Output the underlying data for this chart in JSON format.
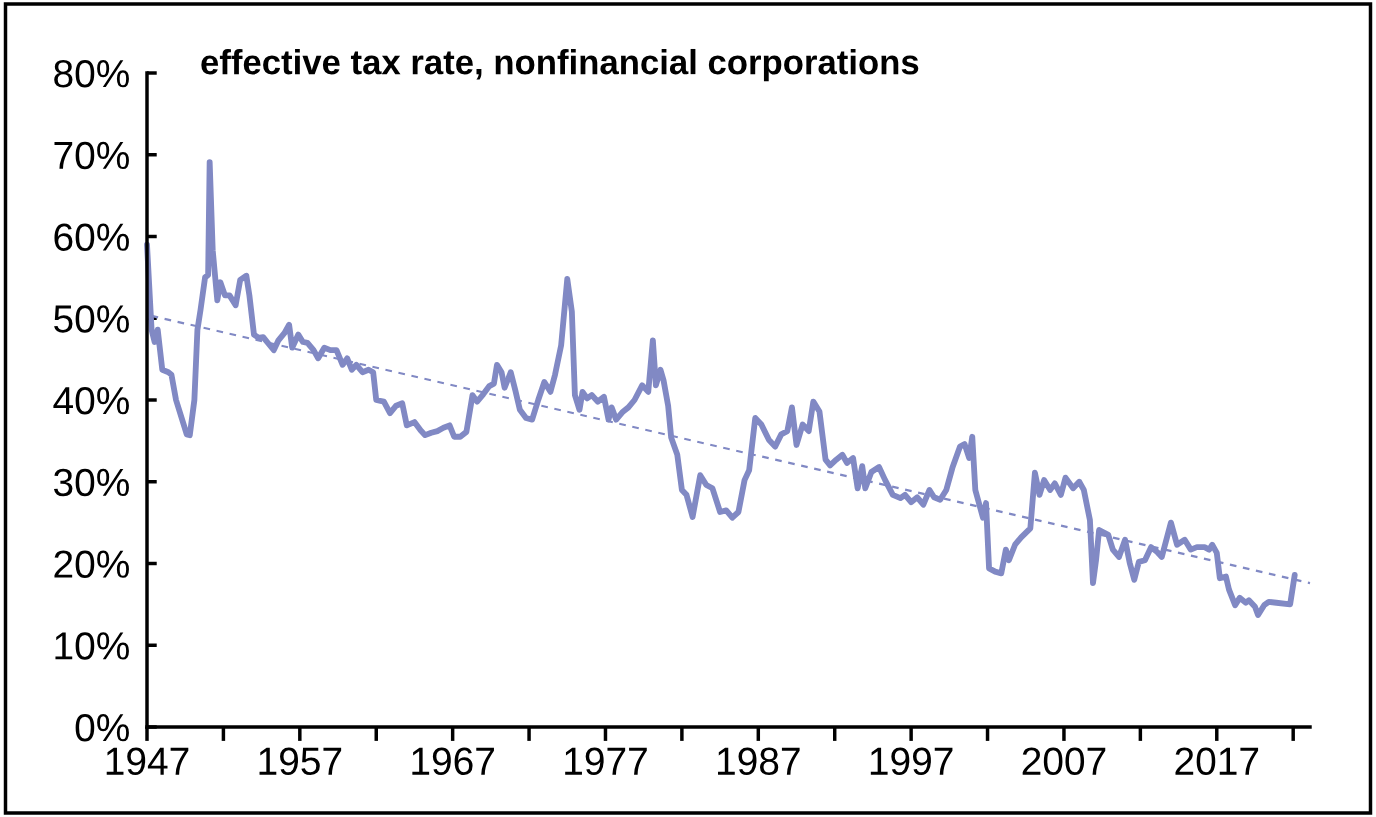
{
  "chart_data": {
    "type": "line",
    "title": "effective tax rate, nonfinancial corporations",
    "xlim": [
      1947,
      2023.1
    ],
    "ylim": [
      0,
      80
    ],
    "xticks": [
      1947,
      {
        "value": 1952,
        "label": null
      },
      1957,
      {
        "value": 1962,
        "label": null
      },
      1967,
      {
        "value": 1972,
        "label": null
      },
      1977,
      {
        "value": 1982,
        "label": null
      },
      1987,
      {
        "value": 1992,
        "label": null
      },
      1997,
      {
        "value": 2002,
        "label": null
      },
      2007,
      {
        "value": 2012,
        "label": null
      },
      2017,
      {
        "value": 2022,
        "label": null
      }
    ],
    "yticks": [
      {
        "value": 0,
        "label": "0%"
      },
      {
        "value": 10,
        "label": "10%"
      },
      {
        "value": 20,
        "label": "20%"
      },
      {
        "value": 30,
        "label": "30%"
      },
      {
        "value": 40,
        "label": "40%"
      },
      {
        "value": 50,
        "label": "50%"
      },
      {
        "value": 60,
        "label": "60%"
      },
      {
        "value": 70,
        "label": "70%"
      },
      {
        "value": 80,
        "label": "80%"
      }
    ],
    "series": [
      {
        "color": "#8189c4",
        "line_style": "solid",
        "x": [
          1947.0,
          1947.3,
          1947.5,
          1947.7,
          1948.0,
          1948.4,
          1948.6,
          1948.9,
          1949.3,
          1949.6,
          1949.8,
          1950.1,
          1950.3,
          1950.5,
          1950.8,
          1951.0,
          1951.1,
          1951.3,
          1951.6,
          1951.8,
          1952.1,
          1952.4,
          1952.8,
          1953.1,
          1953.5,
          1953.7,
          1954.0,
          1954.3,
          1954.6,
          1954.9,
          1955.3,
          1955.6,
          1956.0,
          1956.3,
          1956.5,
          1956.9,
          1957.2,
          1957.5,
          1957.9,
          1958.2,
          1958.6,
          1959.0,
          1959.4,
          1959.8,
          1960.1,
          1960.4,
          1960.7,
          1961.1,
          1961.5,
          1961.8,
          1962.0,
          1962.5,
          1962.9,
          1963.3,
          1963.7,
          1964.0,
          1964.5,
          1964.9,
          1965.2,
          1965.6,
          1966.0,
          1966.4,
          1966.8,
          1967.1,
          1967.5,
          1967.9,
          1968.3,
          1968.6,
          1969.0,
          1969.4,
          1969.7,
          1969.9,
          1970.2,
          1970.4,
          1970.8,
          1971.1,
          1971.4,
          1971.8,
          1972.2,
          1972.6,
          1973.0,
          1973.4,
          1973.7,
          1974.1,
          1974.5,
          1974.8,
          1975.0,
          1975.3,
          1975.5,
          1975.8,
          1976.1,
          1976.5,
          1976.9,
          1977.2,
          1977.4,
          1977.7,
          1978.1,
          1978.5,
          1978.9,
          1979.4,
          1979.8,
          1980.1,
          1980.3,
          1980.6,
          1980.8,
          1981.1,
          1981.3,
          1981.7,
          1982.0,
          1982.3,
          1982.7,
          1983.2,
          1983.6,
          1984.0,
          1984.5,
          1984.9,
          1985.3,
          1985.7,
          1986.1,
          1986.4,
          1986.8,
          1987.2,
          1987.7,
          1988.1,
          1988.5,
          1988.9,
          1989.2,
          1989.5,
          1989.9,
          1990.3,
          1990.6,
          1991.0,
          1991.4,
          1991.7,
          1992.1,
          1992.5,
          1992.8,
          1993.2,
          1993.5,
          1993.8,
          1994.0,
          1994.4,
          1994.9,
          1995.3,
          1995.8,
          1996.3,
          1996.6,
          1997.0,
          1997.4,
          1997.8,
          1998.2,
          1998.5,
          1998.9,
          1999.3,
          1999.7,
          2000.2,
          2000.5,
          2000.8,
          2001.0,
          2001.2,
          2001.7,
          2001.9,
          2002.1,
          2002.5,
          2002.9,
          2003.2,
          2003.4,
          2003.8,
          2004.2,
          2004.8,
          2005.1,
          2005.4,
          2005.7,
          2006.1,
          2006.4,
          2006.8,
          2007.1,
          2007.6,
          2008.0,
          2008.3,
          2008.7,
          2008.9,
          2009.1,
          2009.3,
          2009.9,
          2010.2,
          2010.6,
          2011.0,
          2011.3,
          2011.6,
          2011.9,
          2012.3,
          2012.7,
          2013.1,
          2013.4,
          2014.0,
          2014.4,
          2014.9,
          2015.3,
          2015.7,
          2016.2,
          2016.5,
          2016.7,
          2017.0,
          2017.2,
          2017.6,
          2017.8,
          2018.2,
          2018.5,
          2018.9,
          2019.1,
          2019.5,
          2019.7,
          2020.1,
          2020.4,
          2020.9,
          2021.8,
          2022.1
        ],
        "values": [
          59.0,
          48.6,
          47.1,
          48.6,
          43.7,
          43.4,
          43.1,
          40.0,
          37.6,
          35.8,
          35.7,
          40.0,
          48.6,
          51.0,
          55.0,
          55.3,
          69.1,
          58.3,
          52.2,
          54.4,
          52.8,
          52.8,
          51.6,
          54.7,
          55.2,
          52.8,
          48.0,
          47.6,
          47.7,
          47.0,
          46.1,
          47.3,
          48.2,
          49.2,
          46.4,
          48.0,
          47.1,
          47.0,
          46.1,
          45.1,
          46.4,
          46.1,
          46.1,
          44.3,
          45.1,
          43.7,
          44.3,
          43.4,
          43.7,
          43.4,
          40.0,
          39.8,
          38.4,
          39.3,
          39.6,
          36.9,
          37.3,
          36.3,
          35.7,
          36.0,
          36.2,
          36.6,
          36.9,
          35.5,
          35.5,
          36.1,
          40.6,
          39.8,
          40.7,
          41.7,
          42.0,
          44.3,
          43.4,
          41.5,
          43.4,
          41.2,
          38.8,
          37.8,
          37.6,
          40.0,
          42.2,
          41.0,
          43.1,
          46.7,
          54.8,
          50.8,
          40.6,
          38.8,
          41.0,
          40.2,
          40.6,
          39.8,
          40.4,
          37.6,
          39.1,
          37.6,
          38.5,
          39.1,
          40.0,
          41.8,
          41.0,
          47.3,
          41.8,
          43.7,
          42.4,
          39.3,
          35.4,
          33.3,
          29.0,
          28.4,
          25.7,
          30.8,
          29.6,
          29.2,
          26.3,
          26.5,
          25.6,
          26.3,
          30.2,
          31.4,
          37.8,
          37.0,
          35.1,
          34.3,
          35.8,
          36.2,
          39.1,
          34.5,
          37.0,
          36.2,
          39.8,
          38.6,
          32.7,
          32.0,
          32.7,
          33.3,
          32.3,
          32.9,
          29.2,
          31.9,
          29.2,
          31.2,
          31.8,
          30.2,
          28.4,
          28.0,
          28.4,
          27.5,
          28.1,
          27.2,
          29.0,
          28.1,
          27.8,
          29.0,
          31.7,
          34.3,
          34.6,
          32.9,
          35.5,
          29.0,
          25.6,
          27.4,
          19.4,
          19.0,
          18.8,
          21.7,
          20.4,
          22.3,
          23.2,
          24.3,
          31.1,
          28.4,
          30.2,
          29.0,
          29.8,
          28.4,
          30.5,
          29.2,
          30.0,
          29.0,
          25.3,
          17.6,
          20.4,
          24.1,
          23.5,
          21.7,
          20.8,
          22.9,
          20.1,
          18.0,
          20.2,
          20.4,
          22.0,
          21.4,
          20.8,
          25.0,
          22.3,
          22.9,
          21.7,
          22.0,
          22.0,
          21.7,
          22.3,
          21.3,
          18.2,
          18.4,
          16.8,
          14.9,
          15.8,
          15.2,
          15.5,
          14.7,
          13.7,
          14.9,
          15.3,
          15.2,
          15.0,
          18.6
        ]
      },
      {
        "type": "line",
        "color": "#8189c4",
        "line_style": "dashed",
        "x": [
          1947.3,
          2023.1
        ],
        "values": [
          50.3,
          17.6
        ]
      }
    ]
  }
}
